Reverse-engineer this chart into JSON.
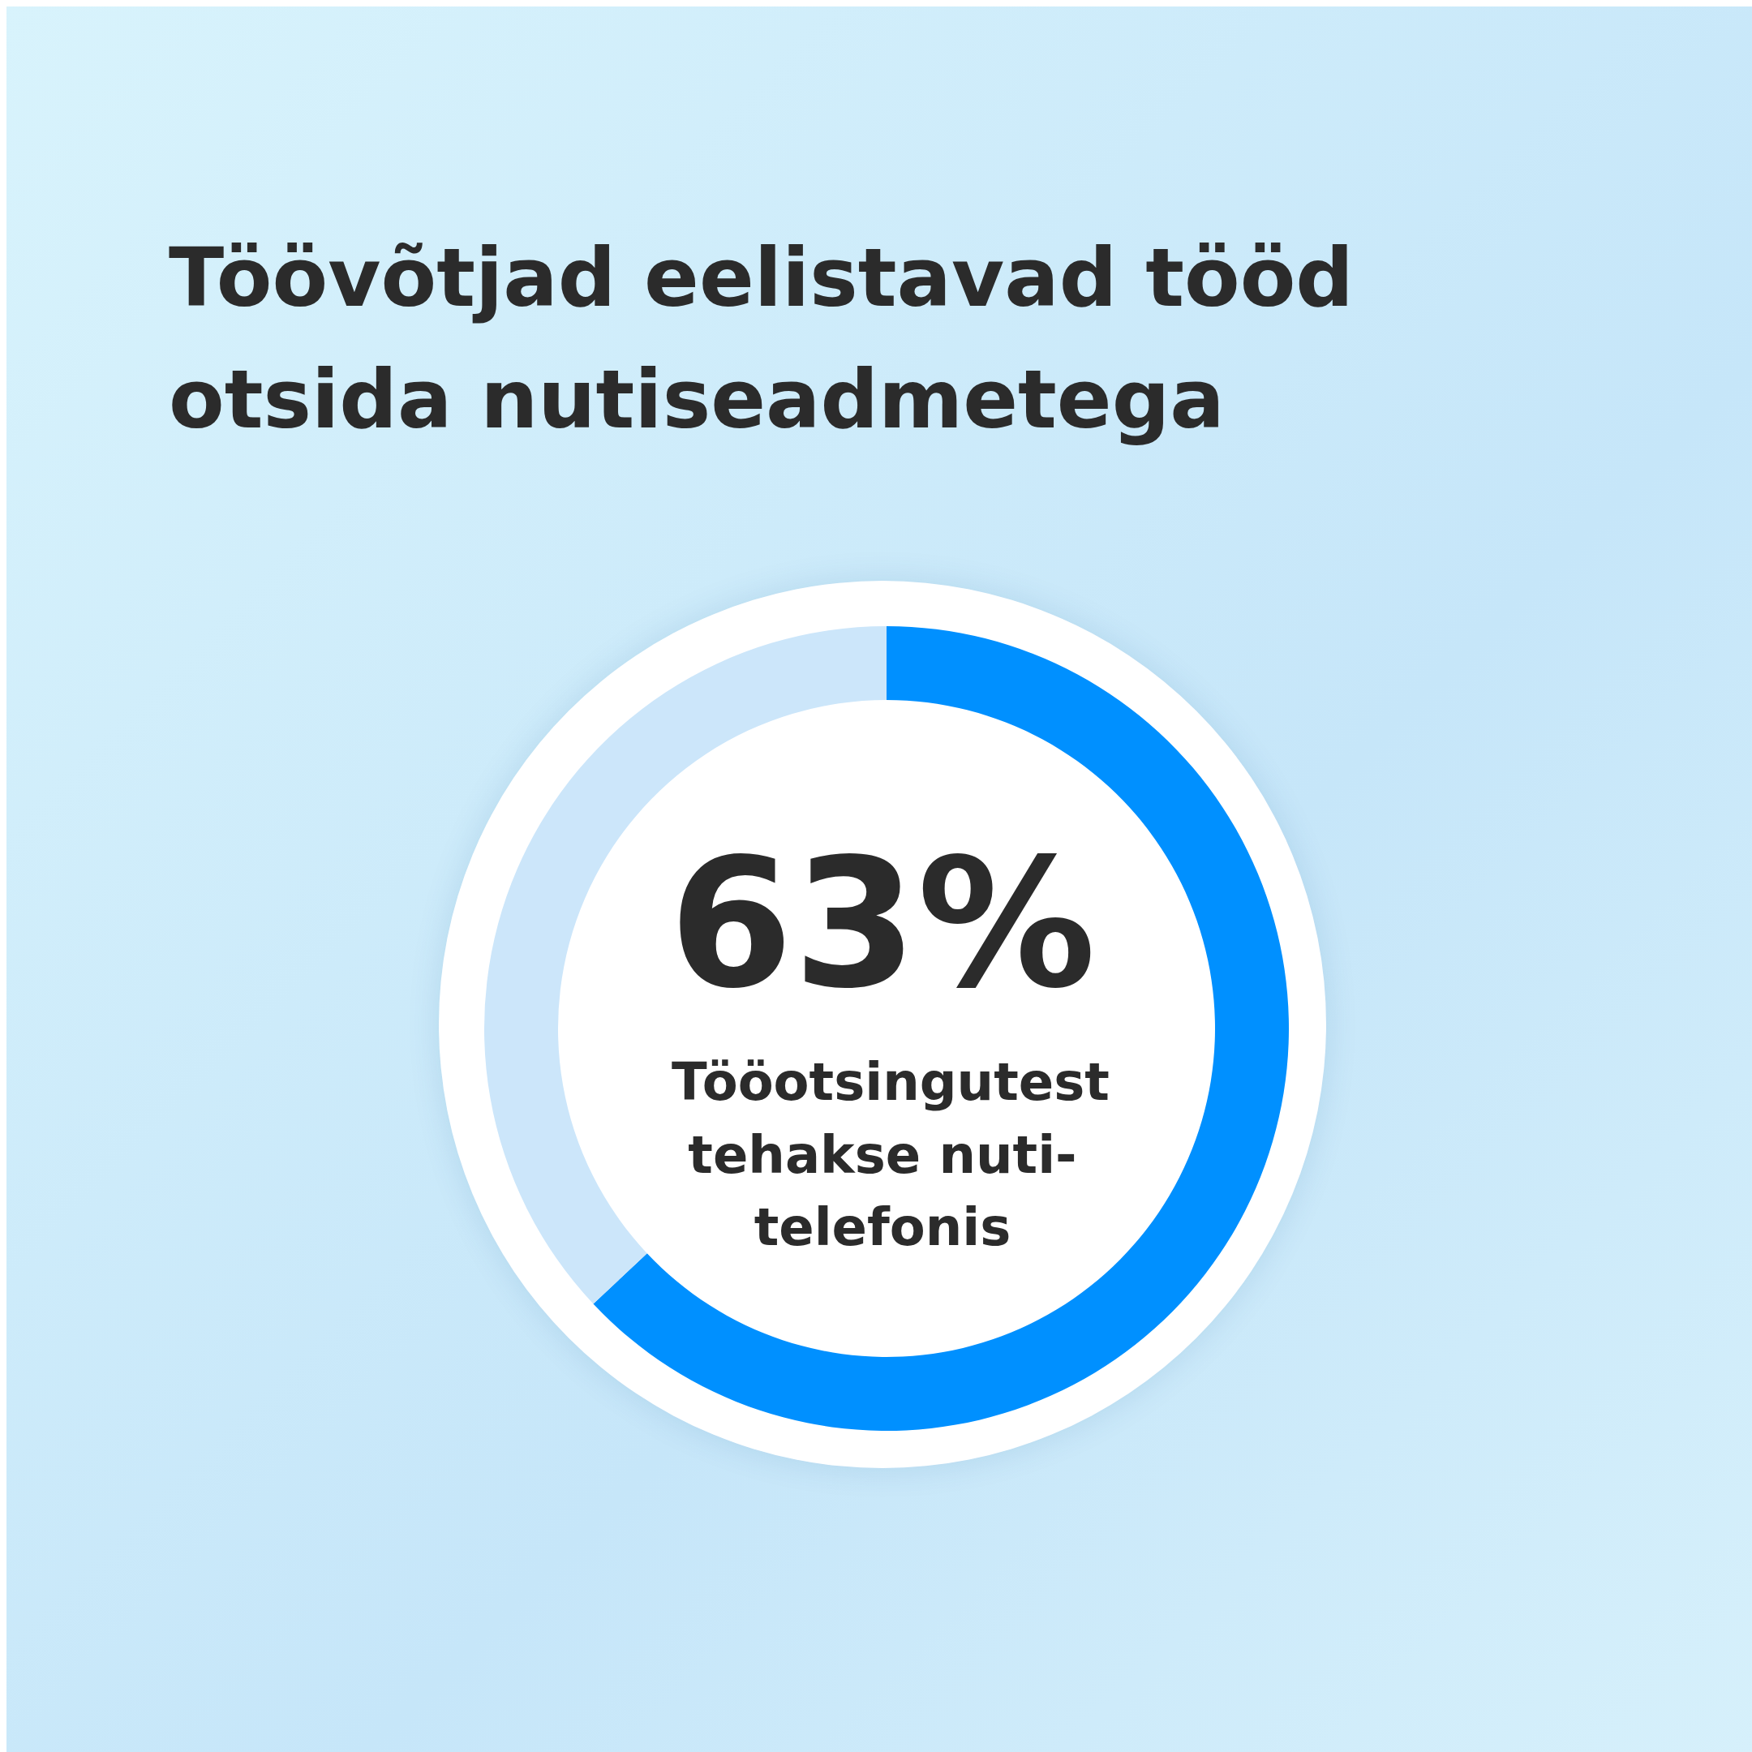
{
  "chart_data": {
    "type": "donut",
    "title": "Töövõtjad eelistavad tööd otsida nutiseadmetega",
    "categories": [
      null,
      null
    ],
    "values": [
      63,
      37
    ],
    "colors": [
      "#0090ff",
      "#cce6fa"
    ],
    "value_labels": [
      "63%",
      null
    ],
    "annotations": [
      "Tööotsingutest tehakse nuti-telefonis"
    ],
    "legend": false
  }
}
